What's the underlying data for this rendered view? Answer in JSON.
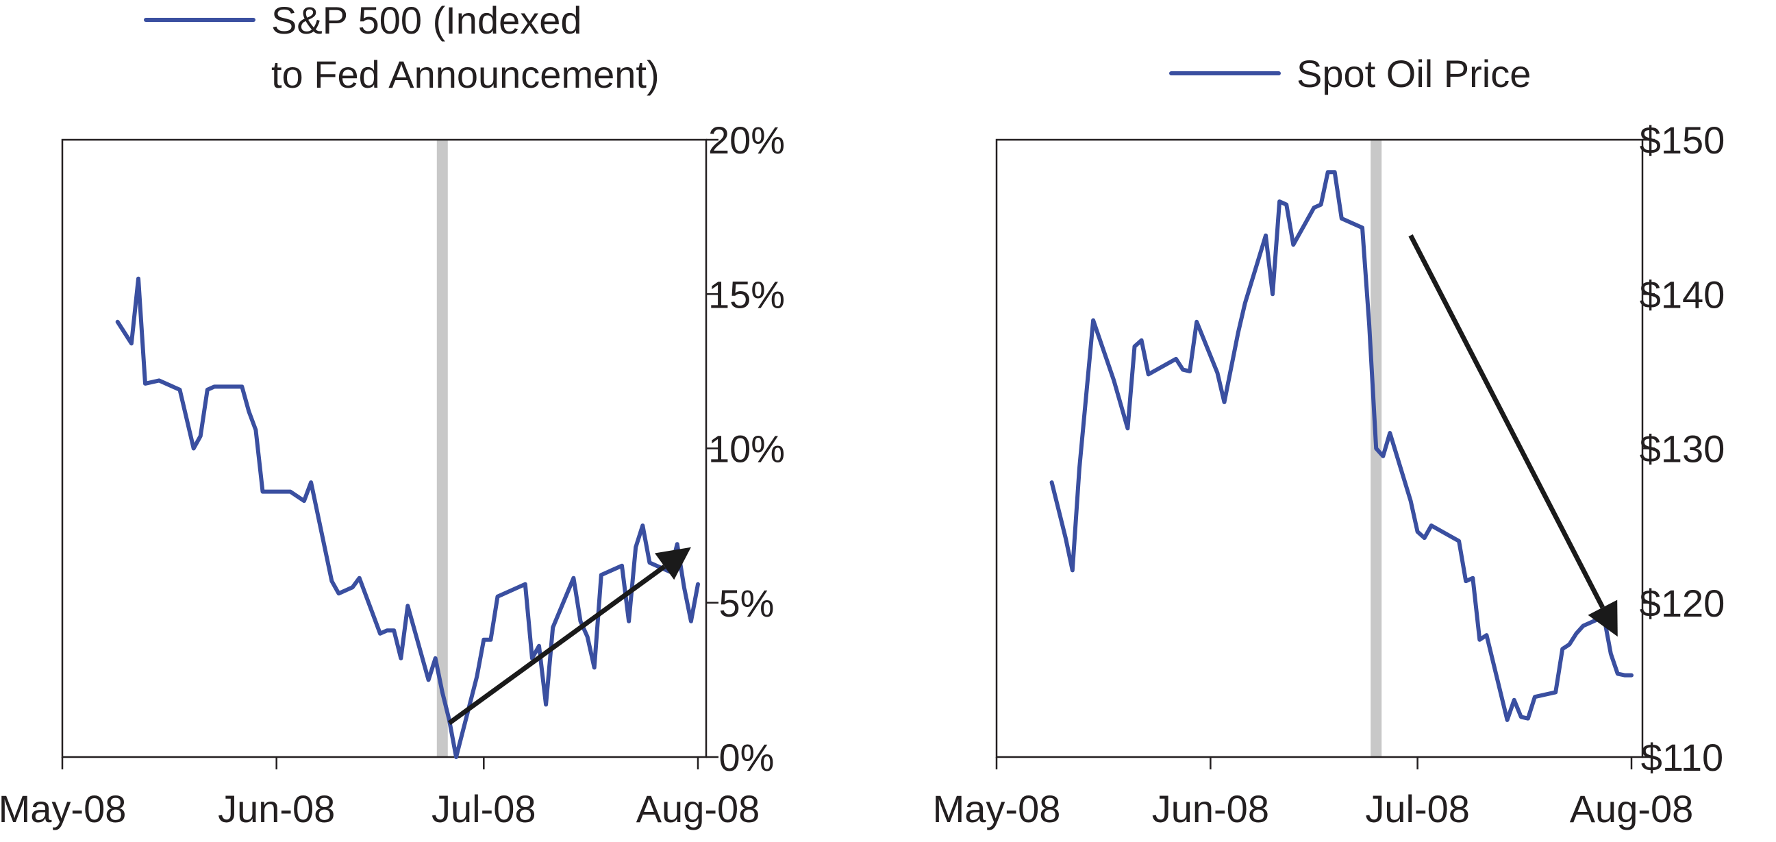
{
  "colors": {
    "series": "#3a4fa0",
    "event_band": "#c8c8c8",
    "arrow": "#1a1a1a",
    "axis": "#231f20"
  },
  "chart_data": [
    {
      "type": "line",
      "legend": [
        "S&P 500  (Indexed",
        "to Fed Announcement)"
      ],
      "legend_position": "top",
      "x_tick_labels": [
        "May-08",
        "Jun-08",
        "Jul-08",
        "Aug-08"
      ],
      "x_tick_dates": [
        "2008-05-01",
        "2008-06-01",
        "2008-07-01",
        "2008-08-01"
      ],
      "y_tick_labels": [
        "0%",
        "5%",
        "10%",
        "15%",
        "20%"
      ],
      "y_ticks": [
        0,
        5,
        10,
        15,
        20
      ],
      "ylim": [
        0,
        20
      ],
      "y_axis_side": "right",
      "grid": false,
      "event_date": "2008-06-25",
      "trend_arrow": {
        "from": [
          "2008-06-26",
          1.1
        ],
        "to": [
          "2008-07-31",
          6.8
        ]
      },
      "series": [
        {
          "x": [
            "2008-05-09",
            "2008-05-11",
            "2008-05-12",
            "2008-05-13",
            "2008-05-15",
            "2008-05-18",
            "2008-05-20",
            "2008-05-21",
            "2008-05-22",
            "2008-05-23",
            "2008-05-27",
            "2008-05-28",
            "2008-05-29",
            "2008-05-30",
            "2008-06-02",
            "2008-06-03",
            "2008-06-05",
            "2008-06-06",
            "2008-06-09",
            "2008-06-10",
            "2008-06-11",
            "2008-06-12",
            "2008-06-13",
            "2008-06-16",
            "2008-06-17",
            "2008-06-18",
            "2008-06-19",
            "2008-06-20",
            "2008-06-23",
            "2008-06-24",
            "2008-06-25",
            "2008-06-26",
            "2008-06-27",
            "2008-06-30",
            "2008-07-01",
            "2008-07-02",
            "2008-07-03",
            "2008-07-07",
            "2008-07-08",
            "2008-07-09",
            "2008-07-10",
            "2008-07-11",
            "2008-07-14",
            "2008-07-15",
            "2008-07-16",
            "2008-07-17",
            "2008-07-18",
            "2008-07-21",
            "2008-07-22",
            "2008-07-23",
            "2008-07-24",
            "2008-07-25",
            "2008-07-28",
            "2008-07-29",
            "2008-07-30",
            "2008-07-31",
            "2008-08-01"
          ],
          "values": [
            14.1,
            13.4,
            15.5,
            12.1,
            12.2,
            11.9,
            10.0,
            10.4,
            11.9,
            12.0,
            12.0,
            11.2,
            10.6,
            8.6,
            8.6,
            8.6,
            8.3,
            8.9,
            5.7,
            5.3,
            5.4,
            5.5,
            5.8,
            4.0,
            4.1,
            4.1,
            3.2,
            4.9,
            2.5,
            3.2,
            2.1,
            1.2,
            0.0,
            2.6,
            3.8,
            3.8,
            5.2,
            5.6,
            3.2,
            3.6,
            1.7,
            4.2,
            5.8,
            4.4,
            3.9,
            2.9,
            5.9,
            6.2,
            4.4,
            6.8,
            7.5,
            6.3,
            6.0,
            6.9,
            5.5,
            4.4,
            5.6
          ]
        }
      ]
    },
    {
      "type": "line",
      "legend": [
        "Spot Oil Price"
      ],
      "legend_position": "top",
      "x_tick_labels": [
        "May-08",
        "Jun-08",
        "Jul-08",
        "Aug-08"
      ],
      "x_tick_dates": [
        "2008-05-01",
        "2008-06-01",
        "2008-07-01",
        "2008-08-01"
      ],
      "y_tick_labels": [
        "$110",
        "$120",
        "$130",
        "$140",
        "$150"
      ],
      "y_ticks": [
        110,
        120,
        130,
        140,
        150
      ],
      "ylim": [
        110,
        150
      ],
      "y_axis_side": "right",
      "grid": false,
      "event_date": "2008-06-25",
      "trend_arrow": {
        "from": [
          "2008-06-30",
          143.8
        ],
        "to": [
          "2008-07-30",
          117.8
        ]
      },
      "series": [
        {
          "x": [
            "2008-05-09",
            "2008-05-11",
            "2008-05-12",
            "2008-05-13",
            "2008-05-15",
            "2008-05-18",
            "2008-05-20",
            "2008-05-21",
            "2008-05-22",
            "2008-05-23",
            "2008-05-27",
            "2008-05-28",
            "2008-05-29",
            "2008-05-30",
            "2008-06-02",
            "2008-06-03",
            "2008-06-05",
            "2008-06-06",
            "2008-06-09",
            "2008-06-10",
            "2008-06-11",
            "2008-06-12",
            "2008-06-13",
            "2008-06-16",
            "2008-06-17",
            "2008-06-18",
            "2008-06-19",
            "2008-06-20",
            "2008-06-23",
            "2008-06-24",
            "2008-06-25",
            "2008-06-26",
            "2008-06-27",
            "2008-06-30",
            "2008-07-01",
            "2008-07-02",
            "2008-07-03",
            "2008-07-07",
            "2008-07-08",
            "2008-07-09",
            "2008-07-10",
            "2008-07-11",
            "2008-07-14",
            "2008-07-15",
            "2008-07-16",
            "2008-07-17",
            "2008-07-18",
            "2008-07-21",
            "2008-07-22",
            "2008-07-23",
            "2008-07-24",
            "2008-07-25",
            "2008-07-28",
            "2008-07-29",
            "2008-07-30",
            "2008-07-31",
            "2008-08-01"
          ],
          "values": [
            127.8,
            124.2,
            122.1,
            128.7,
            138.3,
            134.4,
            131.3,
            136.6,
            137.0,
            134.8,
            135.8,
            135.1,
            135.0,
            138.2,
            134.9,
            133.0,
            137.5,
            139.4,
            143.8,
            140.0,
            146.0,
            145.8,
            143.2,
            145.6,
            145.8,
            147.9,
            147.9,
            144.9,
            144.3,
            138.0,
            130.0,
            129.5,
            131.0,
            126.6,
            124.6,
            124.2,
            125.0,
            124.0,
            121.4,
            121.6,
            117.6,
            117.9,
            112.4,
            113.7,
            112.6,
            112.5,
            113.9,
            114.2,
            117.0,
            117.3,
            118.0,
            118.5,
            119.1,
            116.7,
            115.4,
            115.3,
            115.3
          ]
        }
      ]
    }
  ]
}
